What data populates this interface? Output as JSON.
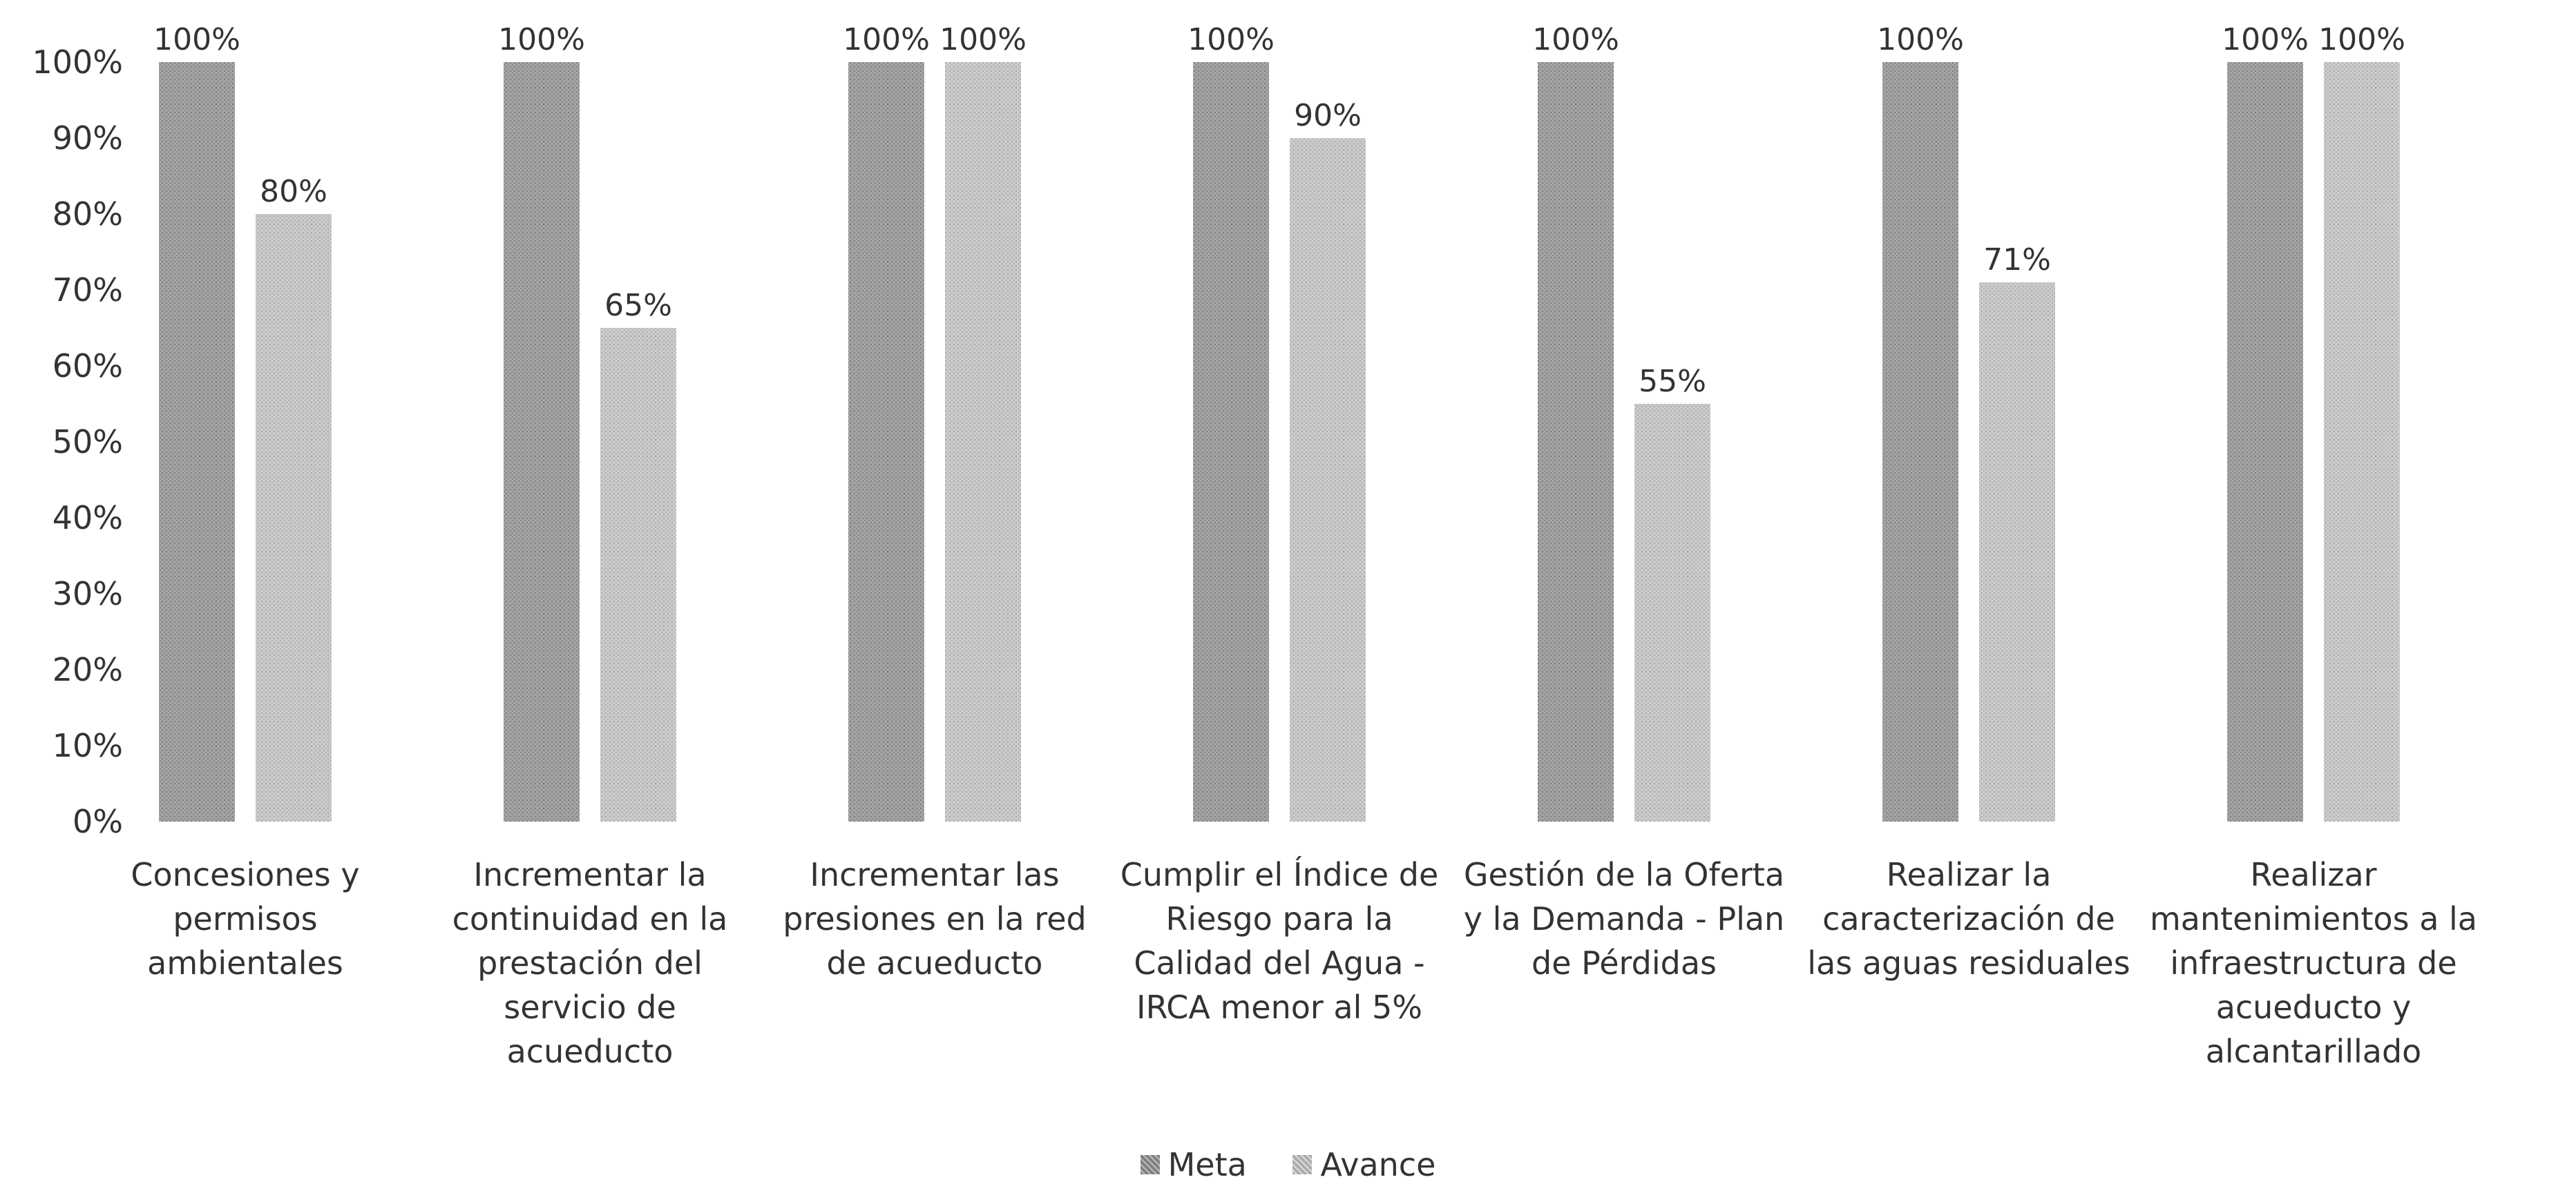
{
  "chart_data": {
    "type": "bar",
    "title": "",
    "xlabel": "",
    "ylabel": "",
    "ylim": [
      0,
      100
    ],
    "y_ticks": [
      "0%",
      "10%",
      "20%",
      "30%",
      "40%",
      "50%",
      "60%",
      "70%",
      "80%",
      "90%",
      "100%"
    ],
    "grid": false,
    "legend_position": "bottom",
    "categories": [
      [
        "Concesiones y",
        "permisos",
        "ambientales"
      ],
      [
        "Incrementar la",
        "continuidad en la",
        "prestación del",
        "servicio de",
        "acueducto"
      ],
      [
        "Incrementar las",
        "presiones en la red",
        "de acueducto"
      ],
      [
        "Cumplir el Índice de",
        "Riesgo para la",
        "Calidad del Agua -",
        "IRCA menor al 5%"
      ],
      [
        "Gestión de la Oferta",
        "y la Demanda - Plan",
        "de Pérdidas"
      ],
      [
        "Realizar la",
        "caracterización de",
        "las aguas residuales"
      ],
      [
        "Realizar",
        "mantenimientos a la",
        "infraestructura de",
        "acueducto y",
        "alcantarillado"
      ]
    ],
    "series": [
      {
        "name": "Meta",
        "values": [
          100,
          100,
          100,
          100,
          100,
          100,
          100
        ],
        "labels": [
          "100%",
          "100%",
          "100%",
          "100%",
          "100%",
          "100%",
          "100%"
        ],
        "color": "#9a9a9a"
      },
      {
        "name": "Avance",
        "values": [
          80,
          65,
          100,
          90,
          55,
          71,
          100
        ],
        "labels": [
          "80%",
          "65%",
          "100%",
          "90%",
          "55%",
          "71%",
          "100%"
        ],
        "color": "#c4c4c4"
      }
    ]
  }
}
